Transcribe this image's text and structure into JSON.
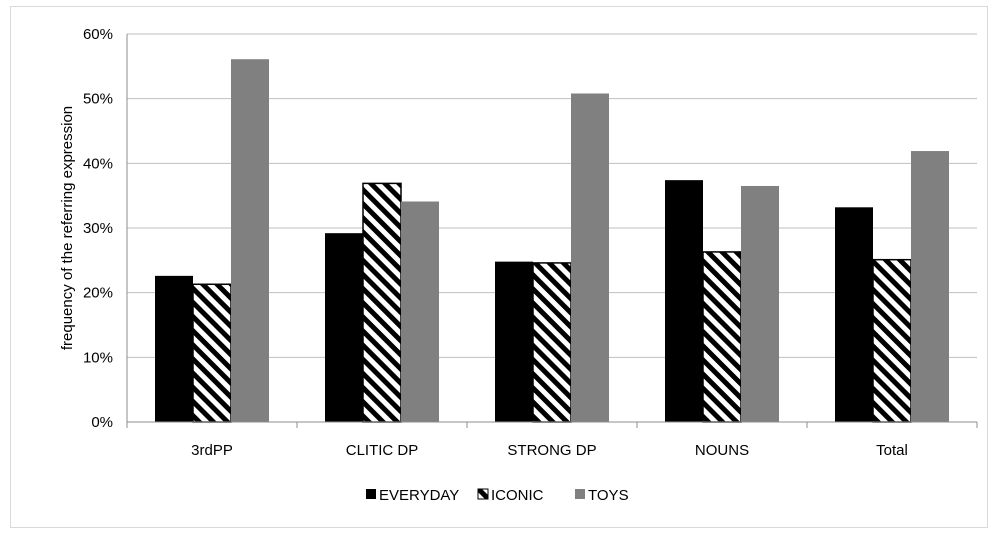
{
  "chart_data": {
    "type": "bar",
    "title": "",
    "xlabel": "",
    "ylabel": "frequency of the referring expression",
    "categories": [
      "3rdPP",
      "CLITIC DP",
      "STRONG DP",
      "NOUNS",
      "Total"
    ],
    "series": [
      {
        "name": "EVERYDAY",
        "values": [
          22.6,
          29.2,
          24.8,
          37.4,
          33.2
        ],
        "color": "#000000",
        "pattern": "solid"
      },
      {
        "name": "ICONIC",
        "values": [
          21.3,
          36.9,
          24.6,
          26.3,
          25.1
        ],
        "color": "#000000",
        "pattern": "diagonal-stripes"
      },
      {
        "name": "TOYS",
        "values": [
          56.1,
          34.1,
          50.8,
          36.5,
          41.9
        ],
        "color": "#808080",
        "pattern": "solid"
      }
    ],
    "ylim": [
      0,
      60
    ],
    "y_ticks": [
      "0%",
      "10%",
      "20%",
      "30%",
      "40%",
      "50%",
      "60%"
    ],
    "grid": true,
    "legend": "bottom"
  }
}
